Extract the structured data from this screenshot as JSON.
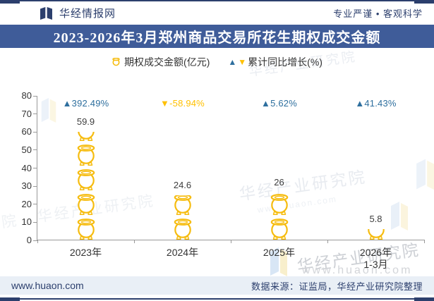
{
  "header": {
    "brand": "华经情报网",
    "slogan": "专业严谨 • 客观科学"
  },
  "title_bar": {
    "title": "2023-2026年3月郑州商品交易所花生期权成交金额"
  },
  "legend": {
    "series1_label": "期权成交金额(亿元)",
    "series2_label": "累计同比增长(%)",
    "up_marker": "▲",
    "down_marker": "▼"
  },
  "chart_data": {
    "type": "pictorial-bar",
    "title": "2023-2026年3月郑州商品交易所花生期权成交金额",
    "categories": [
      "2023年",
      "2024年",
      "2025年",
      "2026年"
    ],
    "category_subs": [
      "",
      "",
      "",
      "1-3月"
    ],
    "series": [
      {
        "name": "期权成交金额(亿元)",
        "values": [
          59.9,
          24.6,
          26,
          5.8
        ]
      },
      {
        "name": "累计同比增长(%)",
        "values": [
          392.49,
          -58.94,
          5.62,
          41.43
        ]
      }
    ],
    "value_labels": [
      "59.9",
      "24.6",
      "26",
      "5.8"
    ],
    "growth_labels": [
      "▲392.49%",
      "▼-58.94%",
      "▲5.62%",
      "▲41.43%"
    ],
    "ylim": [
      0,
      80
    ],
    "yticks": [
      0,
      10,
      20,
      30,
      40,
      50,
      60,
      70,
      80
    ],
    "xtick_percents": [
      0,
      25,
      50,
      75,
      100
    ],
    "grid": false,
    "legend_position": "top"
  },
  "watermarks": {
    "org": "华经产业研究院",
    "url": "www.huaon.com",
    "edge_char": "院"
  },
  "footer": {
    "site": "www.huaon.com",
    "source": "数据来源：证监局，华经产业研究院整理"
  },
  "colors": {
    "accent_navy": "#2c3f6d",
    "title_bar_bg": "#3f5c99",
    "growth_up": "#2E6F9E",
    "growth_down": "#FFC000",
    "jar_yellow": "#F6BC0F",
    "footer_bg": "#e9eff6"
  }
}
